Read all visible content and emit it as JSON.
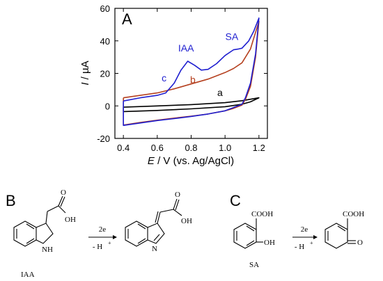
{
  "chart_data": {
    "type": "line",
    "panel_label": "A",
    "xlabel_italic": "E",
    "xlabel_rest": " / V (vs. Ag/AgCl)",
    "ylabel_italic": "I",
    "ylabel_rest": " / µA",
    "xlim": [
      0.35,
      1.25
    ],
    "ylim": [
      -20,
      60
    ],
    "x_ticks": [
      0.4,
      0.6,
      0.8,
      1.0,
      1.2
    ],
    "x_tick_labels": [
      "0.4",
      "0.6",
      "0.8",
      "1.0",
      "1.2"
    ],
    "y_ticks": [
      -20,
      0,
      20,
      40,
      60
    ],
    "y_tick_labels": [
      "-20",
      "0",
      "20",
      "40",
      "60"
    ],
    "grid": false,
    "series": [
      {
        "name": "a",
        "color": "#000000",
        "forward": [
          [
            0.4,
            -0.8
          ],
          [
            0.6,
            0.0
          ],
          [
            0.8,
            0.8
          ],
          [
            1.0,
            2.0
          ],
          [
            1.1,
            3.2
          ],
          [
            1.2,
            5.0
          ]
        ],
        "reverse": [
          [
            1.2,
            5.0
          ],
          [
            1.15,
            2.5
          ],
          [
            1.1,
            1.0
          ],
          [
            1.0,
            -0.5
          ],
          [
            0.8,
            -1.8
          ],
          [
            0.6,
            -2.8
          ],
          [
            0.4,
            -3.5
          ],
          [
            0.4,
            -0.8
          ]
        ]
      },
      {
        "name": "b",
        "color": "#b5401f",
        "forward": [
          [
            0.4,
            5.0
          ],
          [
            0.5,
            6.5
          ],
          [
            0.6,
            8.0
          ],
          [
            0.7,
            10.5
          ],
          [
            0.8,
            13.5
          ],
          [
            0.9,
            16.5
          ],
          [
            1.0,
            20.5
          ],
          [
            1.05,
            23.0
          ],
          [
            1.1,
            26.5
          ],
          [
            1.15,
            35.0
          ],
          [
            1.2,
            52.0
          ]
        ],
        "reverse": [
          [
            1.2,
            52.0
          ],
          [
            1.18,
            30.0
          ],
          [
            1.15,
            12.0
          ],
          [
            1.12,
            4.0
          ],
          [
            1.1,
            0.5
          ],
          [
            1.05,
            -1.5
          ],
          [
            1.0,
            -3.0
          ],
          [
            0.9,
            -5.0
          ],
          [
            0.8,
            -6.3
          ],
          [
            0.7,
            -7.5
          ],
          [
            0.6,
            -8.8
          ],
          [
            0.5,
            -10.2
          ],
          [
            0.4,
            -11.8
          ],
          [
            0.4,
            5.0
          ]
        ]
      },
      {
        "name": "c",
        "color": "#1f1fd0",
        "forward": [
          [
            0.4,
            3.0
          ],
          [
            0.5,
            5.0
          ],
          [
            0.6,
            6.5
          ],
          [
            0.65,
            8.0
          ],
          [
            0.7,
            14.0
          ],
          [
            0.74,
            22.0
          ],
          [
            0.78,
            27.5
          ],
          [
            0.82,
            25.0
          ],
          [
            0.86,
            22.0
          ],
          [
            0.9,
            22.5
          ],
          [
            0.95,
            26.0
          ],
          [
            1.0,
            31.0
          ],
          [
            1.05,
            34.5
          ],
          [
            1.08,
            35.0
          ],
          [
            1.1,
            35.5
          ],
          [
            1.14,
            40.0
          ],
          [
            1.17,
            46.0
          ],
          [
            1.2,
            54.0
          ]
        ],
        "reverse": [
          [
            1.2,
            54.0
          ],
          [
            1.18,
            32.0
          ],
          [
            1.15,
            14.0
          ],
          [
            1.12,
            5.0
          ],
          [
            1.1,
            1.0
          ],
          [
            1.05,
            -1.0
          ],
          [
            1.0,
            -3.0
          ],
          [
            0.9,
            -5.0
          ],
          [
            0.8,
            -6.5
          ],
          [
            0.7,
            -7.8
          ],
          [
            0.6,
            -9.0
          ],
          [
            0.5,
            -10.5
          ],
          [
            0.4,
            -12.0
          ],
          [
            0.4,
            3.0
          ]
        ]
      }
    ],
    "annotations": [
      {
        "text": "IAA",
        "x": 0.77,
        "y": 33.5,
        "color": "#1f1fd0"
      },
      {
        "text": "SA",
        "x": 1.04,
        "y": 40.5,
        "color": "#1f1fd0"
      },
      {
        "text": "c",
        "x": 0.64,
        "y": 15.0,
        "color": "#1f1fd0"
      },
      {
        "text": "b",
        "x": 0.81,
        "y": 14.0,
        "color": "#b5401f"
      },
      {
        "text": "a",
        "x": 0.97,
        "y": 6.0,
        "color": "#000000"
      }
    ]
  },
  "schemes": {
    "panel_b": "B",
    "panel_c": "C",
    "iaa_name": "IAA",
    "sa_name": "SA",
    "arrow_top": "2e",
    "arrow_bottom": "- H",
    "arrow_bottom_sup": "+",
    "oh": "OH",
    "o": "O",
    "nh": "NH",
    "n": "N",
    "cooh": "COOH"
  }
}
